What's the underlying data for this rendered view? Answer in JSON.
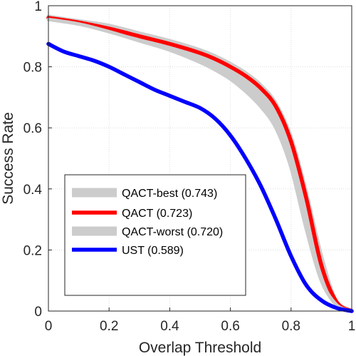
{
  "chart_data": {
    "type": "line",
    "xlabel": "Overlap Threshold",
    "ylabel": "Success Rate",
    "xlim": [
      0,
      1
    ],
    "ylim": [
      0,
      1
    ],
    "xticks": [
      "0",
      "0.2",
      "0.4",
      "0.6",
      "0.8",
      "1"
    ],
    "yticks": [
      "0",
      "0.2",
      "0.4",
      "0.6",
      "0.8",
      "1"
    ],
    "grid": true,
    "legend_position": "bottom-left",
    "band": {
      "upper": "QACT-best (0.743)",
      "lower": "QACT-worst (0.720)",
      "color": "#cccccc",
      "x": [
        0,
        0.1,
        0.2,
        0.3,
        0.4,
        0.5,
        0.55,
        0.6,
        0.65,
        0.7,
        0.75,
        0.8,
        0.85,
        0.9,
        0.95,
        1.0
      ],
      "upper_values": [
        0.965,
        0.95,
        0.935,
        0.91,
        0.885,
        0.855,
        0.835,
        0.81,
        0.78,
        0.74,
        0.68,
        0.57,
        0.39,
        0.18,
        0.03,
        0.0
      ],
      "lower_values": [
        0.955,
        0.94,
        0.915,
        0.885,
        0.855,
        0.815,
        0.79,
        0.76,
        0.72,
        0.67,
        0.6,
        0.47,
        0.27,
        0.1,
        0.02,
        0.0
      ]
    },
    "series": [
      {
        "name": "QACT-best (0.743)",
        "color": "#cccccc",
        "x": [
          0,
          0.1,
          0.2,
          0.3,
          0.4,
          0.5,
          0.55,
          0.6,
          0.65,
          0.7,
          0.75,
          0.8,
          0.85,
          0.9,
          0.95,
          1.0
        ],
        "values": [
          0.965,
          0.95,
          0.935,
          0.91,
          0.885,
          0.855,
          0.835,
          0.81,
          0.78,
          0.74,
          0.68,
          0.57,
          0.39,
          0.18,
          0.03,
          0.0
        ]
      },
      {
        "name": "QACT (0.723)",
        "color": "#ff0000",
        "x": [
          0,
          0.1,
          0.2,
          0.3,
          0.4,
          0.5,
          0.55,
          0.6,
          0.65,
          0.7,
          0.75,
          0.8,
          0.85,
          0.9,
          0.95,
          1.0
        ],
        "values": [
          0.96,
          0.945,
          0.925,
          0.9,
          0.875,
          0.845,
          0.825,
          0.8,
          0.77,
          0.73,
          0.67,
          0.555,
          0.37,
          0.15,
          0.03,
          0.0
        ]
      },
      {
        "name": "QACT-worst (0.720)",
        "color": "#cccccc",
        "x": [
          0,
          0.1,
          0.2,
          0.3,
          0.4,
          0.5,
          0.55,
          0.6,
          0.65,
          0.7,
          0.75,
          0.8,
          0.85,
          0.9,
          0.95,
          1.0
        ],
        "values": [
          0.955,
          0.94,
          0.915,
          0.885,
          0.855,
          0.815,
          0.79,
          0.76,
          0.72,
          0.67,
          0.6,
          0.47,
          0.27,
          0.1,
          0.02,
          0.0
        ]
      },
      {
        "name": "UST (0.589)",
        "color": "#0000ff",
        "x": [
          0,
          0.05,
          0.1,
          0.15,
          0.2,
          0.25,
          0.3,
          0.35,
          0.4,
          0.45,
          0.5,
          0.55,
          0.6,
          0.65,
          0.7,
          0.75,
          0.8,
          0.85,
          0.9,
          0.95,
          1.0
        ],
        "values": [
          0.875,
          0.85,
          0.835,
          0.82,
          0.8,
          0.775,
          0.75,
          0.725,
          0.705,
          0.685,
          0.665,
          0.63,
          0.575,
          0.5,
          0.41,
          0.3,
          0.18,
          0.085,
          0.035,
          0.01,
          0.0
        ]
      }
    ]
  }
}
